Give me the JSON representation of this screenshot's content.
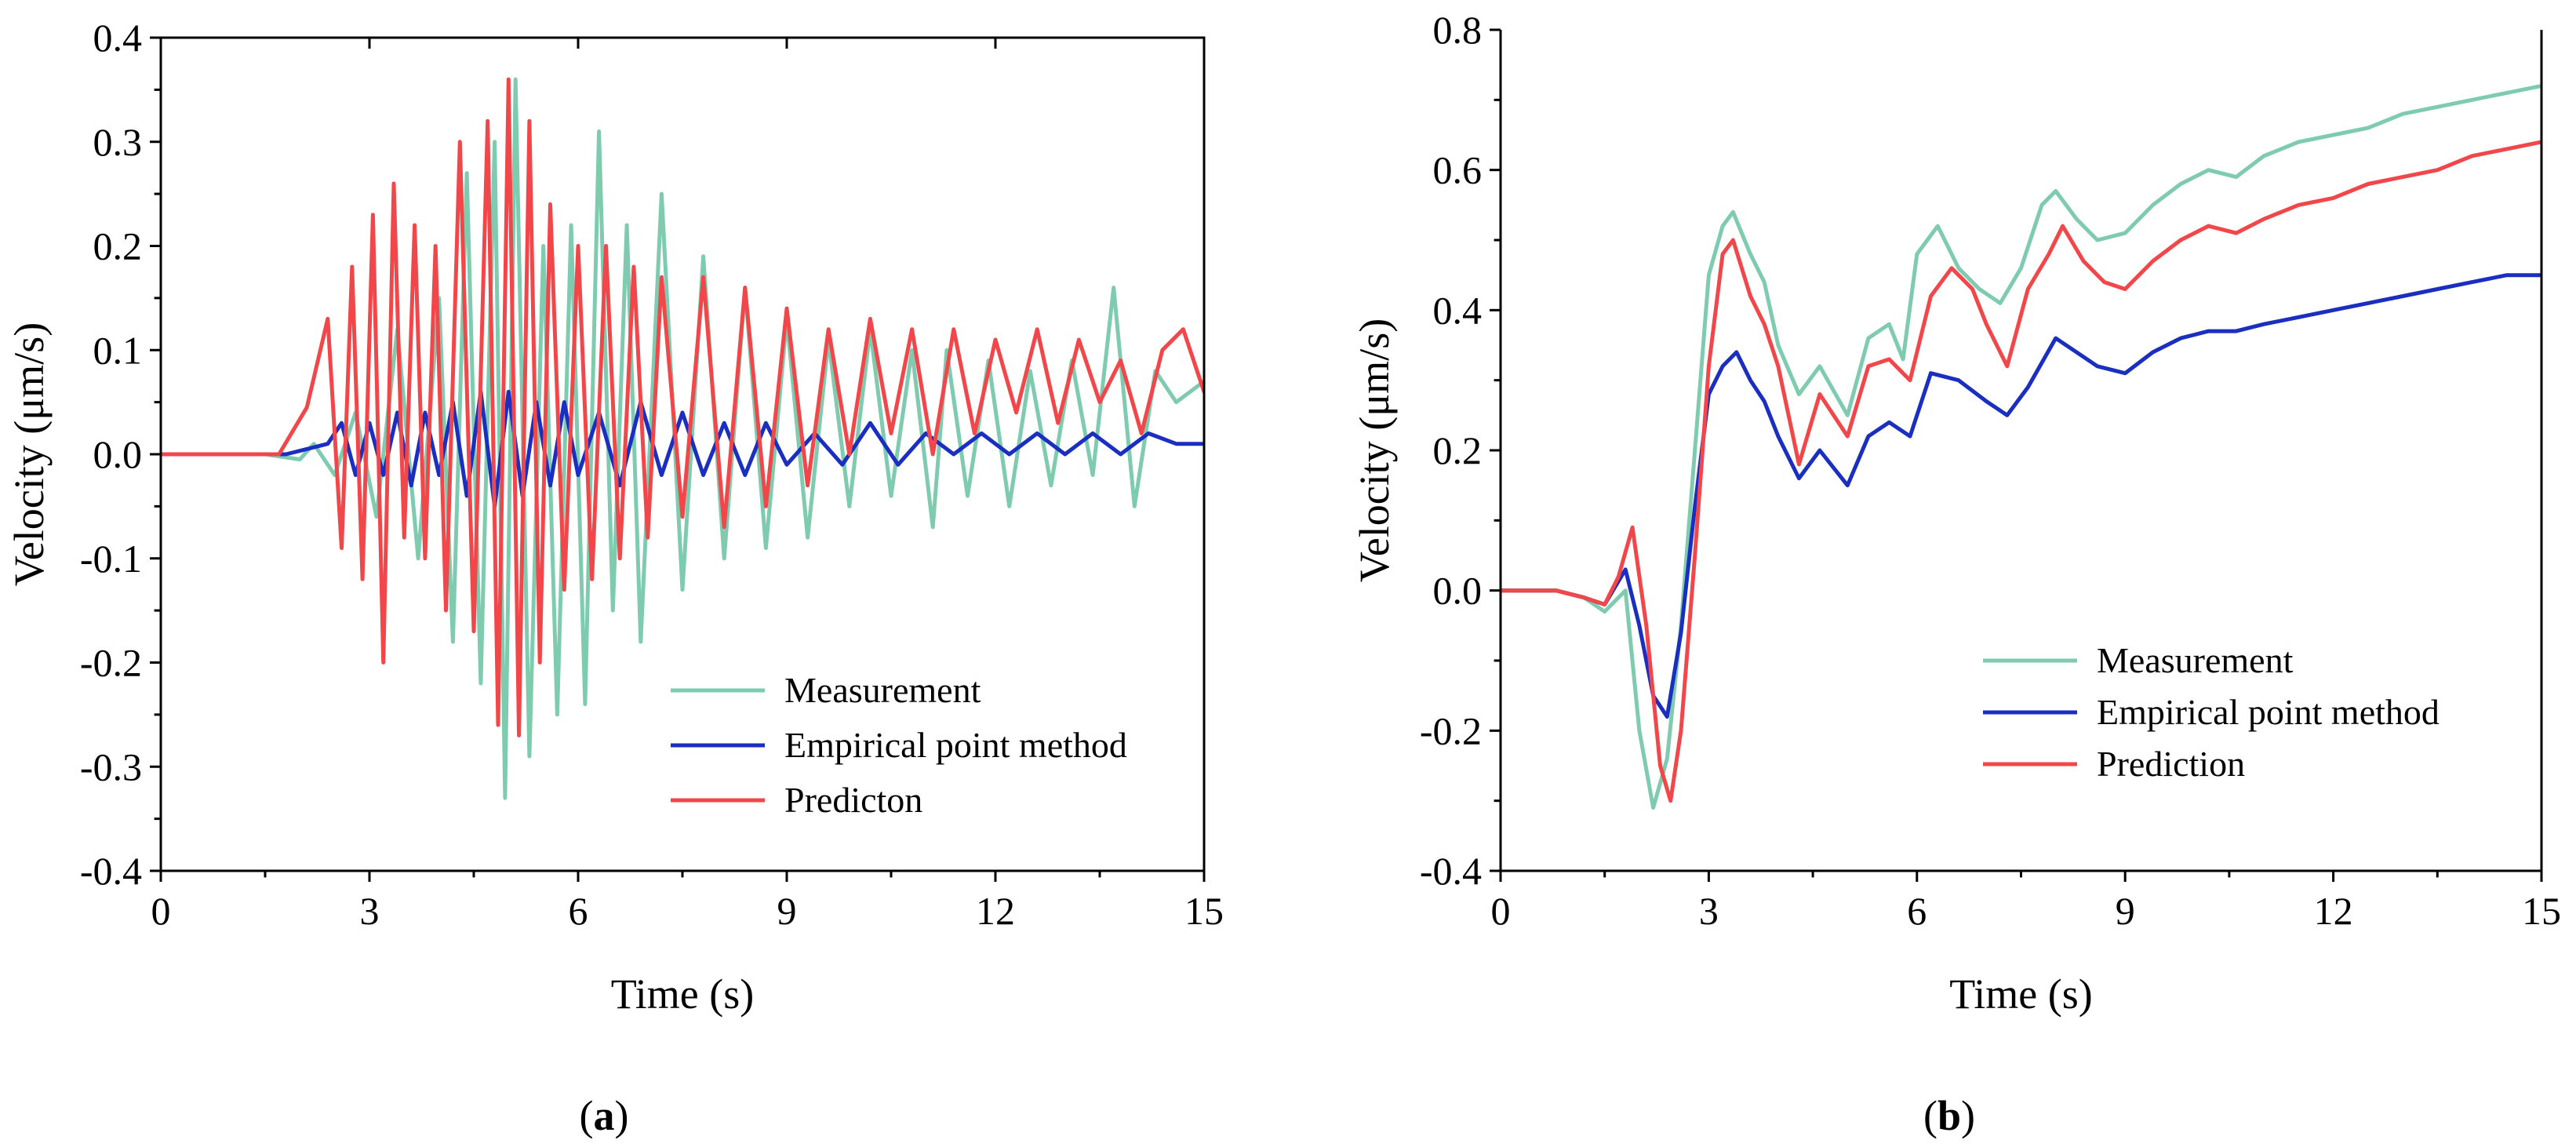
{
  "colors": {
    "measurement": "#7ecbb0",
    "empirical": "#1a2fbf",
    "prediction": "#f2474a"
  },
  "chart_data": [
    {
      "type": "line",
      "panel_label": "a",
      "xlabel": "Time (s)",
      "ylabel": "Velocity (μm/s)",
      "xlim": [
        0,
        15
      ],
      "ylim": [
        -0.4,
        0.4
      ],
      "xticks": [
        0,
        3,
        6,
        9,
        12,
        15
      ],
      "xtick_labels": [
        "0",
        "3",
        "6",
        "9",
        "12",
        "15"
      ],
      "yticks": [
        -0.4,
        -0.3,
        -0.2,
        -0.1,
        0.0,
        0.1,
        0.2,
        0.3,
        0.4
      ],
      "ytick_labels": [
        "-0.4",
        "-0.3",
        "-0.2",
        "-0.1",
        "0.0",
        "0.1",
        "0.2",
        "0.3",
        "0.4"
      ],
      "legend": {
        "position": "bottom-right"
      },
      "series": [
        {
          "name": "Measurement",
          "color": "#7ecbb0",
          "x": [
            0,
            1.5,
            2.0,
            2.2,
            2.5,
            2.8,
            3.1,
            3.4,
            3.7,
            4.0,
            4.2,
            4.4,
            4.6,
            4.8,
            4.95,
            5.1,
            5.3,
            5.5,
            5.7,
            5.9,
            6.1,
            6.3,
            6.5,
            6.7,
            6.9,
            7.2,
            7.5,
            7.8,
            8.1,
            8.4,
            8.7,
            9.0,
            9.3,
            9.6,
            9.9,
            10.2,
            10.5,
            10.8,
            11.1,
            11.3,
            11.6,
            11.9,
            12.2,
            12.5,
            12.8,
            13.1,
            13.4,
            13.7,
            14.0,
            14.3,
            14.6,
            15.0
          ],
          "y": [
            0,
            0,
            -0.005,
            0.01,
            -0.02,
            0.04,
            -0.06,
            0.12,
            -0.1,
            0.15,
            -0.18,
            0.27,
            -0.22,
            0.3,
            -0.33,
            0.36,
            -0.29,
            0.2,
            -0.25,
            0.22,
            -0.24,
            0.31,
            -0.15,
            0.22,
            -0.18,
            0.25,
            -0.13,
            0.19,
            -0.1,
            0.16,
            -0.09,
            0.13,
            -0.08,
            0.11,
            -0.05,
            0.12,
            -0.04,
            0.1,
            -0.07,
            0.1,
            -0.04,
            0.09,
            -0.05,
            0.08,
            -0.03,
            0.09,
            -0.02,
            0.16,
            -0.05,
            0.08,
            0.05,
            0.07
          ]
        },
        {
          "name": "Empirical point method",
          "color": "#1a2fbf",
          "x": [
            0,
            1.8,
            2.4,
            2.6,
            2.8,
            3.0,
            3.2,
            3.4,
            3.6,
            3.8,
            4.0,
            4.2,
            4.4,
            4.6,
            4.8,
            5.0,
            5.2,
            5.4,
            5.6,
            5.8,
            6.0,
            6.3,
            6.6,
            6.9,
            7.2,
            7.5,
            7.8,
            8.1,
            8.4,
            8.7,
            9.0,
            9.4,
            9.8,
            10.2,
            10.6,
            11.0,
            11.4,
            11.8,
            12.2,
            12.6,
            13.0,
            13.4,
            13.8,
            14.2,
            14.6,
            15.0
          ],
          "y": [
            0,
            0,
            0.01,
            0.03,
            -0.02,
            0.03,
            -0.02,
            0.04,
            -0.03,
            0.04,
            -0.02,
            0.05,
            -0.04,
            0.06,
            -0.05,
            0.06,
            -0.04,
            0.05,
            -0.03,
            0.05,
            -0.02,
            0.04,
            -0.03,
            0.05,
            -0.02,
            0.04,
            -0.02,
            0.03,
            -0.02,
            0.03,
            -0.01,
            0.02,
            -0.01,
            0.03,
            -0.01,
            0.02,
            0.0,
            0.02,
            0.0,
            0.02,
            0.0,
            0.02,
            0.0,
            0.02,
            0.01,
            0.01
          ]
        },
        {
          "name": "Predicton",
          "color": "#f2474a",
          "x": [
            0,
            1.7,
            2.1,
            2.4,
            2.6,
            2.75,
            2.9,
            3.05,
            3.2,
            3.35,
            3.5,
            3.65,
            3.8,
            3.95,
            4.1,
            4.3,
            4.5,
            4.7,
            4.85,
            5.0,
            5.15,
            5.3,
            5.45,
            5.6,
            5.8,
            6.0,
            6.2,
            6.4,
            6.6,
            6.8,
            7.0,
            7.2,
            7.5,
            7.8,
            8.1,
            8.4,
            8.7,
            9.0,
            9.3,
            9.6,
            9.9,
            10.2,
            10.5,
            10.8,
            11.1,
            11.4,
            11.7,
            12.0,
            12.3,
            12.6,
            12.9,
            13.2,
            13.5,
            13.8,
            14.1,
            14.4,
            14.7,
            15.0
          ],
          "y": [
            0,
            0,
            0.045,
            0.13,
            -0.09,
            0.18,
            -0.12,
            0.23,
            -0.2,
            0.26,
            -0.08,
            0.22,
            -0.1,
            0.2,
            -0.15,
            0.3,
            -0.17,
            0.32,
            -0.26,
            0.36,
            -0.27,
            0.32,
            -0.2,
            0.24,
            -0.13,
            0.2,
            -0.12,
            0.2,
            -0.1,
            0.18,
            -0.08,
            0.17,
            -0.06,
            0.17,
            -0.07,
            0.16,
            -0.05,
            0.14,
            -0.03,
            0.12,
            0.0,
            0.13,
            0.02,
            0.12,
            0.0,
            0.12,
            0.02,
            0.11,
            0.04,
            0.12,
            0.03,
            0.11,
            0.05,
            0.09,
            0.02,
            0.1,
            0.12,
            0.06
          ]
        }
      ]
    },
    {
      "type": "line",
      "panel_label": "b",
      "xlabel": "Time (s)",
      "ylabel": "Velocity (μm/s)",
      "xlim": [
        0,
        15
      ],
      "ylim": [
        -0.4,
        0.8
      ],
      "xticks": [
        0,
        3,
        6,
        9,
        12,
        15
      ],
      "xtick_labels": [
        "0",
        "3",
        "6",
        "9",
        "12",
        "15"
      ],
      "yticks": [
        -0.4,
        -0.2,
        0.0,
        0.2,
        0.4,
        0.6,
        0.8
      ],
      "ytick_labels": [
        "-0.4",
        "-0.2",
        "0.0",
        "0.2",
        "0.4",
        "0.6",
        "0.8"
      ],
      "legend": {
        "position": "bottom-right"
      },
      "series": [
        {
          "name": "Measurement",
          "color": "#7ecbb0",
          "x": [
            0,
            0.8,
            1.2,
            1.5,
            1.8,
            2.0,
            2.2,
            2.4,
            2.6,
            2.8,
            3.0,
            3.2,
            3.35,
            3.6,
            3.8,
            4.0,
            4.3,
            4.6,
            5.0,
            5.3,
            5.6,
            5.8,
            6.0,
            6.3,
            6.6,
            6.9,
            7.2,
            7.5,
            7.8,
            8.0,
            8.3,
            8.6,
            9.0,
            9.4,
            9.8,
            10.2,
            10.6,
            11.0,
            11.5,
            12.0,
            12.5,
            13.0,
            13.5,
            14.0,
            14.5,
            15.0
          ],
          "y": [
            0,
            0,
            -0.01,
            -0.03,
            0.0,
            -0.2,
            -0.31,
            -0.24,
            -0.05,
            0.2,
            0.45,
            0.52,
            0.54,
            0.48,
            0.44,
            0.35,
            0.28,
            0.32,
            0.25,
            0.36,
            0.38,
            0.33,
            0.48,
            0.52,
            0.46,
            0.43,
            0.41,
            0.46,
            0.55,
            0.57,
            0.53,
            0.5,
            0.51,
            0.55,
            0.58,
            0.6,
            0.59,
            0.62,
            0.64,
            0.65,
            0.66,
            0.68,
            0.69,
            0.7,
            0.71,
            0.72
          ]
        },
        {
          "name": "Empirical point method",
          "color": "#1a2fbf",
          "x": [
            0,
            0.8,
            1.2,
            1.5,
            1.8,
            2.0,
            2.2,
            2.4,
            2.6,
            2.8,
            3.0,
            3.2,
            3.4,
            3.6,
            3.8,
            4.0,
            4.3,
            4.6,
            5.0,
            5.3,
            5.6,
            5.9,
            6.2,
            6.6,
            7.0,
            7.3,
            7.6,
            8.0,
            8.3,
            8.6,
            9.0,
            9.4,
            9.8,
            10.2,
            10.6,
            11.0,
            11.5,
            12.0,
            12.5,
            13.0,
            13.5,
            14.0,
            14.5,
            15.0
          ],
          "y": [
            0,
            0,
            -0.01,
            -0.02,
            0.03,
            -0.05,
            -0.15,
            -0.18,
            -0.06,
            0.12,
            0.28,
            0.32,
            0.34,
            0.3,
            0.27,
            0.22,
            0.16,
            0.2,
            0.15,
            0.22,
            0.24,
            0.22,
            0.31,
            0.3,
            0.27,
            0.25,
            0.29,
            0.36,
            0.34,
            0.32,
            0.31,
            0.34,
            0.36,
            0.37,
            0.37,
            0.38,
            0.39,
            0.4,
            0.41,
            0.42,
            0.43,
            0.44,
            0.45,
            0.45
          ]
        },
        {
          "name": "Prediction",
          "color": "#f2474a",
          "x": [
            0,
            0.8,
            1.2,
            1.5,
            1.7,
            1.9,
            2.1,
            2.3,
            2.45,
            2.6,
            2.8,
            3.0,
            3.2,
            3.35,
            3.6,
            3.8,
            4.0,
            4.3,
            4.6,
            5.0,
            5.3,
            5.6,
            5.9,
            6.2,
            6.5,
            6.8,
            7.0,
            7.3,
            7.6,
            7.9,
            8.1,
            8.4,
            8.7,
            9.0,
            9.4,
            9.8,
            10.2,
            10.6,
            11.0,
            11.5,
            12.0,
            12.5,
            13.0,
            13.5,
            14.0,
            14.5,
            15.0
          ],
          "y": [
            0,
            0,
            -0.01,
            -0.02,
            0.02,
            0.09,
            -0.05,
            -0.25,
            -0.3,
            -0.2,
            0.05,
            0.32,
            0.48,
            0.5,
            0.42,
            0.38,
            0.32,
            0.18,
            0.28,
            0.22,
            0.32,
            0.33,
            0.3,
            0.42,
            0.46,
            0.43,
            0.38,
            0.32,
            0.43,
            0.48,
            0.52,
            0.47,
            0.44,
            0.43,
            0.47,
            0.5,
            0.52,
            0.51,
            0.53,
            0.55,
            0.56,
            0.58,
            0.59,
            0.6,
            0.62,
            0.63,
            0.64
          ]
        }
      ]
    }
  ]
}
